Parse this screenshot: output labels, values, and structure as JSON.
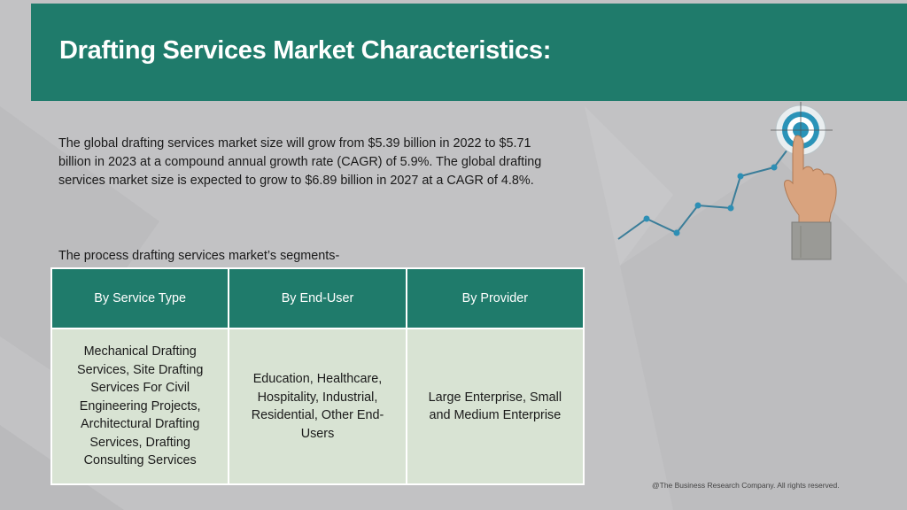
{
  "header": {
    "title": "Drafting Services Market Characteristics:"
  },
  "body": {
    "paragraph": "The global drafting services market size will grow from $5.39 billion in 2022 to $5.71 billion in 2023 at a compound annual growth rate (CAGR) of 5.9%. The global drafting services market size is expected to grow to $6.89 billion in 2027 at a CAGR of 4.8%.",
    "segments_intro": "The process drafting services market’s segments-"
  },
  "table": {
    "headers": [
      "By Service Type",
      "By End-User",
      "By Provider"
    ],
    "cells": [
      "Mechanical Drafting Services, Site Drafting Services For Civil Engineering Projects, Architectural Drafting Services, Drafting Consulting Services",
      "Education, Healthcare, Hospitality, Industrial, Residential, Other End-Users",
      "Large Enterprise, Small and Medium Enterprise"
    ]
  },
  "illustration": {
    "icons": [
      "target-icon",
      "pointing-hand-icon",
      "growth-line-icon"
    ],
    "colors": {
      "target_ring": "#2a93b8",
      "line": "#3a7d99",
      "point": "#2d8fb5"
    }
  },
  "footer": {
    "copyright": "@The Business Research Company. All rights reserved."
  },
  "colors": {
    "teal": "#1f7b6b",
    "background": "#c2c2c4",
    "cell_background": "#d8e3d3"
  }
}
